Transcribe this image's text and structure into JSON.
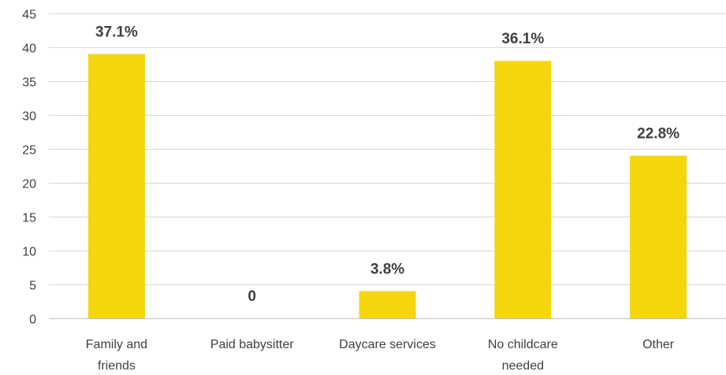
{
  "chart_data": {
    "type": "bar",
    "categories": [
      [
        "Family and",
        "friends"
      ],
      [
        "Paid babysitter"
      ],
      [
        "Daycare services"
      ],
      [
        "No childcare",
        "needed"
      ],
      [
        "Other"
      ]
    ],
    "values": [
      39,
      0,
      4,
      38,
      24
    ],
    "data_labels": [
      "37.1%",
      "0",
      "3.8%",
      "36.1%",
      "22.8%"
    ],
    "ylim": [
      0,
      45
    ],
    "yticks": [
      0,
      5,
      10,
      15,
      20,
      25,
      30,
      35,
      40,
      45
    ],
    "grid": true,
    "legend": "none",
    "bar_color": "#f5d60c",
    "text_color": "#404040",
    "grid_color": "#d9d9d9"
  }
}
